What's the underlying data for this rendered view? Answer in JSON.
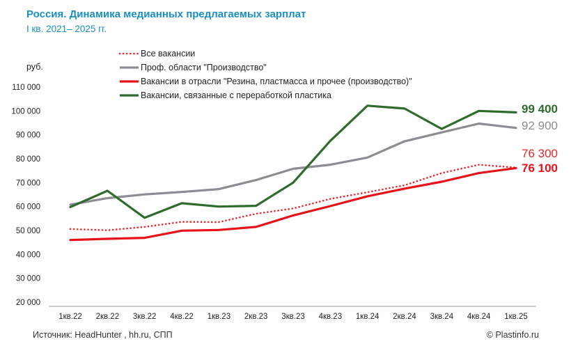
{
  "header": {
    "title": "Россия. Динамика медианных предлагаемых зарплат",
    "subtitle": "I кв. 2021– 2025 гг."
  },
  "footer": {
    "source": "Источник: HeadHunter , hh.ru, СПП",
    "copyright": "© Plastinfo.ru"
  },
  "chart_data": {
    "type": "line",
    "title": "Россия. Динамика медианных предлагаемых зарплат",
    "subtitle": "I кв. 2021– 2025 гг.",
    "ylabel": "руб.",
    "xlabel": "",
    "ylim": [
      20000,
      110000
    ],
    "yticks": [
      20000,
      30000,
      40000,
      50000,
      60000,
      70000,
      80000,
      90000,
      100000,
      110000
    ],
    "ytick_labels": [
      "20 000",
      "30 000",
      "40 000",
      "50 000",
      "60 000",
      "70 000",
      "80 000",
      "90 000",
      "100 000",
      "110 000"
    ],
    "categories": [
      "1кв.22",
      "2кв.22",
      "3кв.22",
      "4кв.22",
      "1кв.23",
      "2кв.23",
      "3кв.23",
      "4кв.23",
      "1кв.24",
      "2кв.24",
      "3кв.24",
      "4кв.24",
      "1кв.25"
    ],
    "grid": false,
    "legend_position": "top-left",
    "series": [
      {
        "name": "Все вакансии",
        "color": "#e8262b",
        "style": "dotted",
        "values": [
          50600,
          50100,
          51500,
          53600,
          53500,
          57000,
          59200,
          63200,
          66000,
          68900,
          74000,
          77500,
          76300
        ],
        "end_label": "76 300"
      },
      {
        "name": "Проф. области \"Производство\"",
        "color": "#8c8c94",
        "style": "solid",
        "values": [
          60800,
          63500,
          65100,
          66100,
          67300,
          71100,
          75800,
          77500,
          80500,
          87300,
          91000,
          94700,
          92900
        ],
        "end_label": "92 900"
      },
      {
        "name": "Вакансии в отрасли \"Резина, пластмасса и прочее (производство)\"",
        "color": "#e8121b",
        "style": "solid",
        "values": [
          46000,
          46500,
          46900,
          49900,
          50200,
          51500,
          56300,
          60200,
          64300,
          67500,
          70400,
          74000,
          76100
        ],
        "end_label": "76 100"
      },
      {
        "name": "Вакансии, связанные с переработкой пластика",
        "color": "#2f6b2d",
        "style": "solid",
        "values": [
          59800,
          66600,
          55300,
          61400,
          60000,
          60300,
          70000,
          87500,
          102200,
          101000,
          92500,
          100000,
          99400
        ],
        "end_label": "99 400"
      }
    ]
  }
}
